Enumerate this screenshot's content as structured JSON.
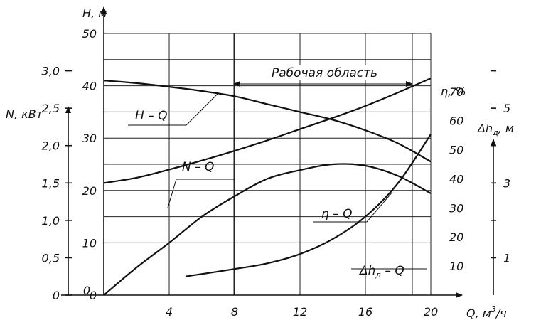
{
  "chart_data": {
    "type": "line",
    "title": "",
    "x_axis": {
      "label": "Q, м³/ч",
      "label_parts": [
        "Q, м",
        "3",
        "/ч"
      ],
      "range": [
        0,
        20
      ],
      "ticks": [
        "4",
        "8",
        "12",
        "16",
        "20"
      ]
    },
    "y_axes": {
      "H": {
        "label": "H, м",
        "range": [
          0,
          50
        ],
        "ticks": [
          "0",
          "10",
          "20",
          "30",
          "40",
          "50"
        ]
      },
      "N": {
        "label": "N, кВт",
        "range": [
          0,
          3.5
        ],
        "ticks": [
          "0",
          "0,5",
          "1,0",
          "1,5",
          "2,0",
          "2,5",
          "3,0"
        ]
      },
      "eta": {
        "label": "η, %",
        "range": [
          0,
          90
        ],
        "ticks": [
          "10",
          "20",
          "30",
          "40",
          "50",
          "60",
          "70"
        ]
      },
      "dh": {
        "label_parts": [
          "Δh",
          "д",
          ", м"
        ],
        "range": [
          0,
          7
        ],
        "ticks": [
          "1",
          "3",
          "5"
        ]
      }
    },
    "working_area": {
      "label": "Рабочая область",
      "q_range": [
        9,
        18
      ]
    },
    "series": [
      {
        "name": "H – Q",
        "axis": "H",
        "x": [
          0,
          2,
          4,
          6,
          8,
          10,
          12,
          14,
          16,
          18,
          20
        ],
        "y": [
          41,
          40.5,
          39.8,
          39,
          38,
          36.5,
          35,
          33.5,
          31.5,
          29,
          25.5
        ]
      },
      {
        "name": "N – Q",
        "axis": "N",
        "x": [
          0,
          2,
          4,
          6,
          8,
          10,
          12,
          14,
          16,
          18,
          20
        ],
        "y": [
          1.5,
          1.57,
          1.68,
          1.8,
          1.93,
          2.07,
          2.22,
          2.37,
          2.53,
          2.71,
          2.9
        ]
      },
      {
        "name": "η – Q",
        "axis": "eta",
        "x": [
          0,
          2,
          4,
          6,
          8,
          10,
          12,
          14,
          16,
          18,
          20
        ],
        "y": [
          0,
          9.5,
          18,
          27,
          34,
          40,
          43,
          45,
          44.5,
          41,
          35
        ]
      },
      {
        "name": "Δhд – Q",
        "label_parts": [
          "Δh",
          "д",
          " – Q"
        ],
        "axis": "dh",
        "x": [
          5,
          8,
          10,
          12,
          14,
          16,
          18,
          20
        ],
        "y": [
          0.5,
          0.7,
          0.85,
          1.1,
          1.5,
          2.1,
          3.0,
          4.3
        ]
      }
    ],
    "grid": true
  }
}
